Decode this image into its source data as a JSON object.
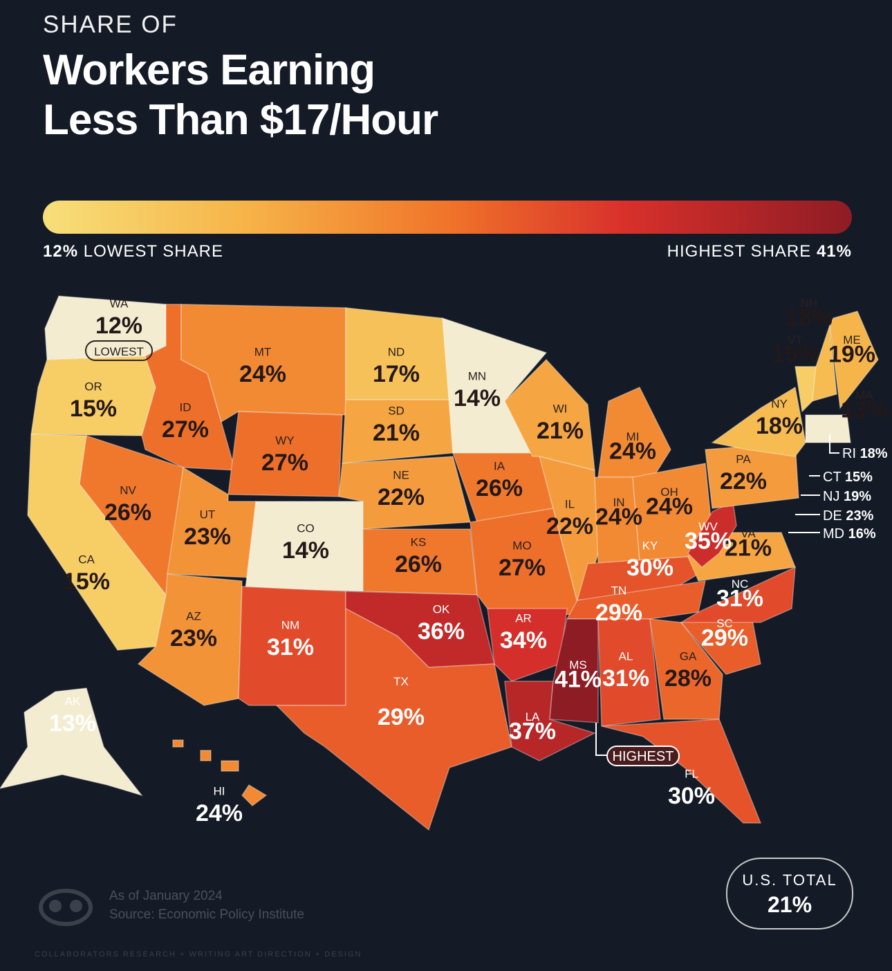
{
  "header": {
    "kicker": "SHARE OF",
    "title_line1": "Workers Earning",
    "title_line2": "Less Than $17/Hour"
  },
  "legend": {
    "low_value": "12%",
    "low_label": "LOWEST SHARE",
    "high_label": "HIGHEST SHARE",
    "high_value": "41%",
    "colors": [
      "#f7df7a",
      "#f6b448",
      "#f0742a",
      "#d8302b",
      "#8e1c24"
    ]
  },
  "badges": {
    "lowest": "LOWEST",
    "highest": "HIGHEST"
  },
  "states": [
    {
      "abbr": "WA",
      "value": "12%"
    },
    {
      "abbr": "OR",
      "value": "15%"
    },
    {
      "abbr": "CA",
      "value": "15%"
    },
    {
      "abbr": "ID",
      "value": "27%"
    },
    {
      "abbr": "NV",
      "value": "26%"
    },
    {
      "abbr": "MT",
      "value": "24%"
    },
    {
      "abbr": "WY",
      "value": "27%"
    },
    {
      "abbr": "UT",
      "value": "23%"
    },
    {
      "abbr": "AZ",
      "value": "23%"
    },
    {
      "abbr": "CO",
      "value": "14%"
    },
    {
      "abbr": "NM",
      "value": "31%"
    },
    {
      "abbr": "ND",
      "value": "17%"
    },
    {
      "abbr": "SD",
      "value": "21%"
    },
    {
      "abbr": "NE",
      "value": "22%"
    },
    {
      "abbr": "KS",
      "value": "26%"
    },
    {
      "abbr": "OK",
      "value": "36%"
    },
    {
      "abbr": "TX",
      "value": "29%"
    },
    {
      "abbr": "MN",
      "value": "14%"
    },
    {
      "abbr": "IA",
      "value": "26%"
    },
    {
      "abbr": "MO",
      "value": "27%"
    },
    {
      "abbr": "AR",
      "value": "34%"
    },
    {
      "abbr": "LA",
      "value": "37%"
    },
    {
      "abbr": "WI",
      "value": "21%"
    },
    {
      "abbr": "IL",
      "value": "22%"
    },
    {
      "abbr": "MI",
      "value": "24%"
    },
    {
      "abbr": "IN",
      "value": "24%"
    },
    {
      "abbr": "OH",
      "value": "24%"
    },
    {
      "abbr": "KY",
      "value": "30%"
    },
    {
      "abbr": "TN",
      "value": "29%"
    },
    {
      "abbr": "MS",
      "value": "41%"
    },
    {
      "abbr": "AL",
      "value": "31%"
    },
    {
      "abbr": "GA",
      "value": "28%"
    },
    {
      "abbr": "FL",
      "value": "30%"
    },
    {
      "abbr": "SC",
      "value": "29%"
    },
    {
      "abbr": "NC",
      "value": "31%"
    },
    {
      "abbr": "VA",
      "value": "21%"
    },
    {
      "abbr": "WV",
      "value": "35%"
    },
    {
      "abbr": "PA",
      "value": "22%"
    },
    {
      "abbr": "NY",
      "value": "18%"
    },
    {
      "abbr": "VT",
      "value": "15%"
    },
    {
      "abbr": "NH",
      "value": "18%"
    },
    {
      "abbr": "ME",
      "value": "19%"
    },
    {
      "abbr": "MA",
      "value": "13%"
    },
    {
      "abbr": "AK",
      "value": "13%"
    },
    {
      "abbr": "HI",
      "value": "24%"
    }
  ],
  "callouts": [
    {
      "abbr": "RI",
      "value": "18%"
    },
    {
      "abbr": "CT",
      "value": "15%"
    },
    {
      "abbr": "NJ",
      "value": "19%"
    },
    {
      "abbr": "DE",
      "value": "23%"
    },
    {
      "abbr": "MD",
      "value": "16%"
    }
  ],
  "total": {
    "label": "U.S. TOTAL",
    "value": "21%"
  },
  "footer": {
    "date": "As of January 2024",
    "source": "Source: Economic Policy Institute",
    "credits": "COLLABORATORS   RESEARCH + WRITING   ART DIRECTION + DESIGN"
  }
}
